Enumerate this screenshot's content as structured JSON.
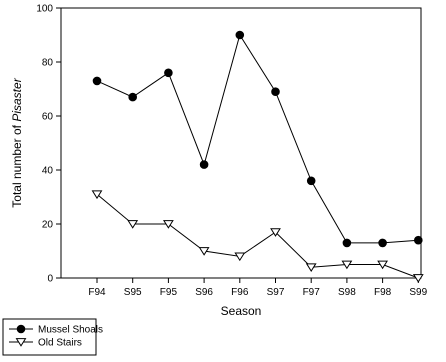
{
  "chart_data": {
    "type": "line",
    "categories": [
      "F94",
      "S95",
      "F95",
      "S96",
      "F96",
      "S97",
      "F97",
      "S98",
      "F98",
      "S99"
    ],
    "series": [
      {
        "name": "Mussel Shoals",
        "marker": "filled-circle",
        "values": [
          73,
          67,
          76,
          42,
          90,
          69,
          36,
          13,
          13,
          14
        ]
      },
      {
        "name": "Old Stairs",
        "marker": "open-triangle-down",
        "values": [
          31,
          20,
          20,
          10,
          8,
          17,
          4,
          5,
          5,
          0
        ]
      }
    ],
    "xlabel": "Season",
    "ylabel_prefix": "Total number of ",
    "ylabel_italic": "Pisaster",
    "ylim": [
      0,
      100
    ],
    "yticks": [
      0,
      20,
      40,
      60,
      80,
      100
    ],
    "grid": false,
    "legend_position": "bottom-left, below plot",
    "colors": {
      "line": "#000000",
      "marker_fill": "#000000",
      "open_marker_fill": "#ffffff"
    }
  }
}
